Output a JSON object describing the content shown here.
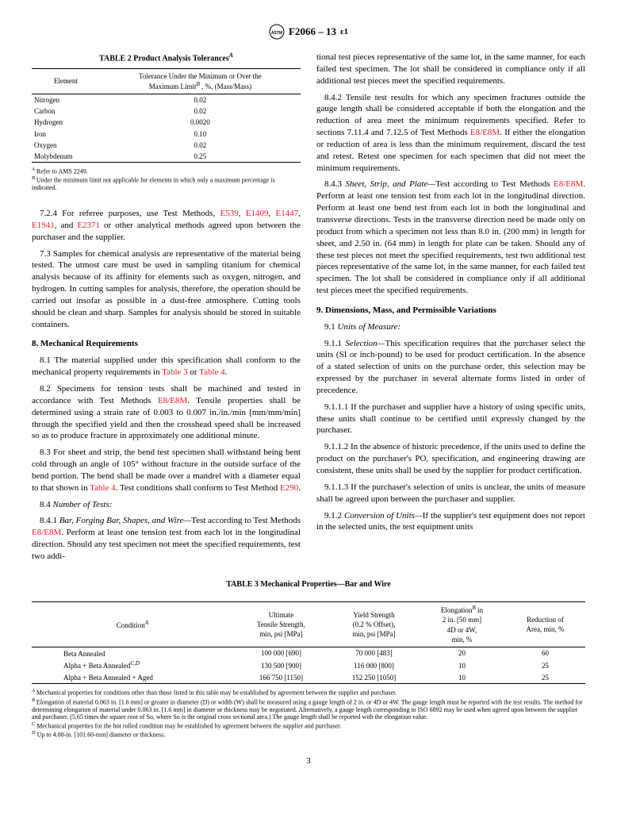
{
  "header": {
    "designation": "F2066 – 13",
    "epsilon": "ε1"
  },
  "table2": {
    "title": "TABLE 2 Product Analysis Tolerances",
    "sup": "A",
    "col1_header": "Element",
    "col2_header_line1": "Tolerance Under the Minimum or Over the",
    "col2_header_line2": "Maximum Limit",
    "col2_header_sup": "B",
    "col2_header_suffix": " , %, (Mass/Mass)",
    "rows": [
      {
        "element": "Nitrogen",
        "tolerance": "0.02"
      },
      {
        "element": "Carbon",
        "tolerance": "0.02"
      },
      {
        "element": "Hydrogen",
        "tolerance": "0.0020"
      },
      {
        "element": "Iron",
        "tolerance": "0.10"
      },
      {
        "element": "Oxygen",
        "tolerance": "0.02"
      },
      {
        "element": "Molybdenum",
        "tolerance": "0.25"
      }
    ],
    "note_a_sup": "A",
    "note_a": " Refer to AMS 2249.",
    "note_b_sup": "B",
    "note_b": " Under the minimum limit not applicable for elements in which only a maximum percentage is indicated."
  },
  "left_col": {
    "p724_prefix": "7.2.4 For referee purposes, use Test Methods, ",
    "p724_links": [
      "E539",
      "E1409",
      "E1447",
      "E1941",
      "E2371"
    ],
    "p724_suffix": " or other analytical methods agreed upon between the purchaser and the supplier.",
    "p73": "7.3 Samples for chemical analysis are representative of the material being tested. The utmost care must be used in sampling titanium for chemical analysis because of its affinity for elements such as oxygen, nitrogen, and hydrogen. In cutting samples for analysis, therefore, the operation should be carried out insofar as possible in a dust-free atmosphere. Cutting tools should be clean and sharp. Samples for analysis should be stored in suitable containers.",
    "s8_title": "8.  Mechanical Requirements",
    "p81_a": "8.1 The material supplied under this specification shall conform to the mechanical property requirements in ",
    "p81_link1": "Table 3",
    "p81_b": " or ",
    "p81_link2": "Table 4",
    "p81_c": ".",
    "p82_a": "8.2 Specimens for tension tests shall be machined and tested in accordance with Test Methods ",
    "p82_link": "E8/E8M",
    "p82_b": ". Tensile properties shall be determined using a strain rate of 0.003 to 0.007 in./in./min [mm/mm/min] through the specified yield and then the crosshead speed shall be increased so as to produce fracture in approximately one additional minute.",
    "p83_a": "8.3 For sheet and strip, the bend test specimen shall withstand being bent cold through an angle of 105° without fracture in the outside surface of the bend portion. The bend shall be made over a mandrel with a diameter equal to that shown in ",
    "p83_link1": "Table 4",
    "p83_b": ". Test conditions shall conform to Test Method ",
    "p83_link2": "E290",
    "p83_c": ".",
    "p84_title": "8.4 ",
    "p84_italic": "Number of Tests:",
    "p841_a": "8.4.1 ",
    "p841_italic": "Bar, Forging Bar, Shapes, and Wire—",
    "p841_b": "Test according to Test Methods ",
    "p841_link": "E8/E8M",
    "p841_c": ". Perform at least one tension test from each lot in the longitudinal direction. Should any test specimen not meet the specified requirements, test two addi-"
  },
  "right_col": {
    "p841_cont": "tional test pieces representative of the same lot, in the same manner, for each failed test specimen. The lot shall be considered in compliance only if all additional test pieces meet the specified requirements.",
    "p842_a": "8.4.2 Tensile test results for which any specimen fractures outside the gauge length shall be considered acceptable if both the elongation and the reduction of area meet the minimum requirements specified. Refer to sections 7.11.4 and 7.12.5 of Test Methods ",
    "p842_link": "E8/E8M",
    "p842_b": ". If either the elongation or reduction of area is less than the minimum requirement, discard the test and retest. Retest one specimen for each specimen that did not meet the minimum requirements.",
    "p843_a": "8.4.3 ",
    "p843_italic": "Sheet, Strip, and Plate—",
    "p843_b": "Test according to Test Methods ",
    "p843_link": "E8/E8M",
    "p843_c": ". Perform at least one tension test from each lot in the longitudinal direction. Perform at least one bend test from each lot in both the longitudinal and transverse directions. Tests in the transverse direction need be made only on product from which a specimen not less than 8.0 in. (200 mm) in length for sheet, and 2.50 in. (64 mm) in length for plate can be taken. Should any of these test pieces not meet the specified requirements, test two additional test pieces representative of the same lot, in the same manner, for each failed test specimen. The lot shall be considered in compliance only if all additional test pieces meet the specified requirements.",
    "s9_title": "9.  Dimensions, Mass, and Permissible Variations",
    "p91_a": "9.1 ",
    "p91_italic": "Units of Measure:",
    "p911_a": "9.1.1 ",
    "p911_italic": "Selection—",
    "p911_b": "This specification requires that the purchaser select the units (SI or inch-pound) to be used for product certification. In the absence of a stated selection of units on the purchase order, this selection may be expressed by the purchaser in several alternate forms listed in order of precedence.",
    "p9111": "9.1.1.1 If the purchaser and supplier have a history of using specific units, these units shall continue to be certified until expressly changed by the purchaser.",
    "p9112": "9.1.1.2 In the absence of historic precedence, if the units used to define the product on the purchaser's PO, specification, and engineering drawing are consistent, these units shall be used by the supplier for product certification.",
    "p9113": "9.1.1.3 If the purchaser's selection of units is unclear, the units of measure shall be agreed upon between the purchaser and supplier.",
    "p912_a": "9.1.2 ",
    "p912_italic": "Conversion of Units—",
    "p912_b": "If the supplier's test equipment does not report in the selected units, the test equipment units"
  },
  "table3": {
    "title": "TABLE 3 Mechanical Properties—Bar and Wire",
    "headers": {
      "h1": "Condition",
      "h1_sup": "A",
      "h2_l1": "Ultimate",
      "h2_l2": "Tensile Strength,",
      "h2_l3": "min, psi [MPa]",
      "h3_l1": "Yield Strength",
      "h3_l2": "(0.2 % Offset),",
      "h3_l3": "min, psi [MPa]",
      "h4_l1": "Elongation",
      "h4_sup": "B",
      "h4_l1b": " in",
      "h4_l2": "2 in. [50 mm]",
      "h4_l3": "4D or 4W,",
      "h4_l4": "min, %",
      "h5_l1": "Reduction of",
      "h5_l2": "Area, min, %"
    },
    "rows": [
      {
        "c": "Beta Annealed",
        "sup": "",
        "uts": "100 000 [690]",
        "ys": "70 000 [483]",
        "el": "20",
        "ra": "60"
      },
      {
        "c": "Alpha + Beta Annealed",
        "sup": "C,D",
        "uts": "130 500 [900]",
        "ys": "116 000 [800]",
        "el": "10",
        "ra": "25"
      },
      {
        "c": "Alpha + Beta Annealed + Aged",
        "sup": "",
        "uts": "166 750 [1150]",
        "ys": "152 250 [1050]",
        "el": "10",
        "ra": "25"
      }
    ],
    "note_a_sup": "A",
    "note_a": " Mechanical properties for conditions other than those listed in this table may be established by agreement between the supplier and purchaser.",
    "note_b_sup": "B",
    "note_b": " Elongation of material 0.063 in. [1.6 mm] or greater in diameter (D) or width (W) shall be measured using a gauge length of 2 in. or 4D or 4W. The gauge length must be reported with the test results. The method for determining elongation of material under 0.063 in. [1.6 mm] in diameter or thickness may be negotiated. Alternatively, a gauge length corresponding to ISO 6892 may be used when agreed upon between the supplier and purchaser. (5.65 times the square root of So, where So is the original cross sectional area.) The gauge length shall be reported with the elongation value.",
    "note_c_sup": "C",
    "note_c": " Mechanical properties for the hot rolled condition may be established by agreement between the supplier and purchaser.",
    "note_d_sup": "D",
    "note_d": " Up to 4.00-in. [101.60-mm] diameter or thickness."
  },
  "page_number": "3"
}
